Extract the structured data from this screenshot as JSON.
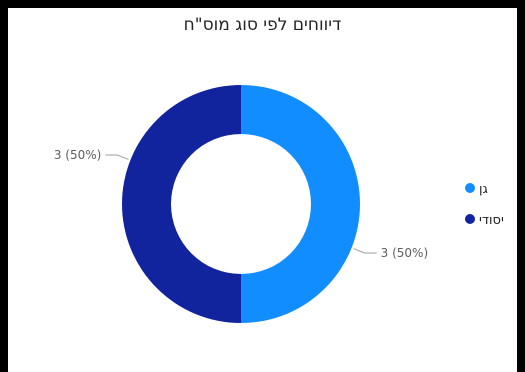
{
  "chart_data": {
    "type": "pie",
    "subtype": "donut",
    "title": "דיווחים לפי סוג מוס\"ח",
    "legend_position": "right",
    "slices": [
      {
        "label": "גן",
        "value": 3,
        "percent": 50,
        "data_label": "3 (50%)",
        "color": "#118dff"
      },
      {
        "label": "יסודי",
        "value": 3,
        "percent": 50,
        "data_label": "3 (50%)",
        "color": "#12239e"
      }
    ]
  }
}
